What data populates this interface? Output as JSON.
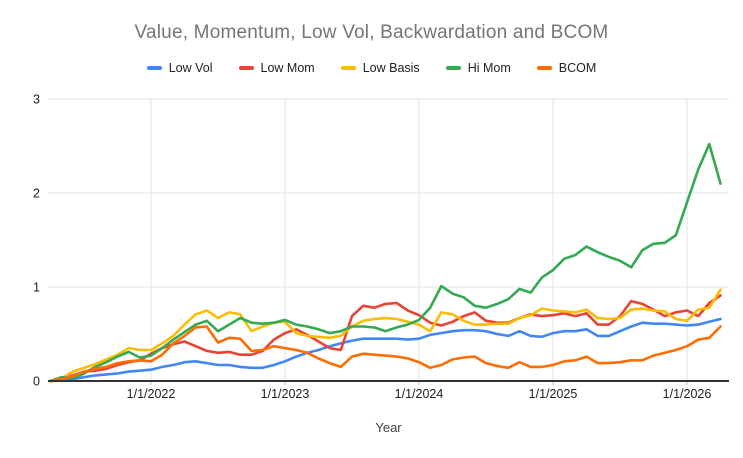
{
  "chart_data": {
    "type": "line",
    "title": "Value, Momentum, Low Vol, Backwardation and BCOM",
    "xlabel": "Year",
    "legend_position": "top",
    "grid": true,
    "ylim": [
      0,
      3
    ],
    "y_ticks": [
      0,
      1,
      2,
      3
    ],
    "x_ticks": [
      {
        "label": "1/1/2022",
        "t": 2022
      },
      {
        "label": "1/1/2023",
        "t": 2023
      },
      {
        "label": "1/1/2024",
        "t": 2024
      },
      {
        "label": "1/1/2025",
        "t": 2025
      },
      {
        "label": "1/1/2026",
        "t": 2026
      }
    ],
    "x_start_label": "4/2021",
    "x_labels": [
      "4/2021",
      "5/2021",
      "6/2021",
      "7/2021",
      "8/2021",
      "9/2021",
      "10/2021",
      "11/2021",
      "12/2021",
      "1/2022",
      "2/2022",
      "3/2022",
      "4/2022",
      "5/2022",
      "6/2022",
      "7/2022",
      "8/2022",
      "9/2022",
      "10/2022",
      "11/2022",
      "12/2022",
      "1/2023",
      "2/2023",
      "3/2023",
      "4/2023",
      "5/2023",
      "6/2023",
      "7/2023",
      "8/2023",
      "9/2023",
      "10/2023",
      "11/2023",
      "12/2023",
      "1/2024",
      "2/2024",
      "3/2024",
      "4/2024",
      "5/2024",
      "6/2024",
      "7/2024",
      "8/2024",
      "9/2024",
      "10/2024",
      "11/2024",
      "12/2024",
      "1/2025",
      "2/2025",
      "3/2025",
      "4/2025",
      "5/2025",
      "6/2025",
      "7/2025",
      "8/2025",
      "9/2025",
      "10/2025",
      "11/2025",
      "12/2025",
      "1/2026",
      "2/2026",
      "3/2026",
      "4/2026"
    ],
    "series": [
      {
        "name": "Low Vol",
        "color": "#4285f4",
        "values": [
          0.0,
          0.01,
          0.02,
          0.04,
          0.06,
          0.07,
          0.08,
          0.1,
          0.11,
          0.12,
          0.15,
          0.17,
          0.2,
          0.21,
          0.19,
          0.17,
          0.17,
          0.15,
          0.14,
          0.14,
          0.17,
          0.21,
          0.26,
          0.3,
          0.33,
          0.37,
          0.4,
          0.43,
          0.45,
          0.45,
          0.45,
          0.45,
          0.44,
          0.45,
          0.49,
          0.51,
          0.53,
          0.54,
          0.54,
          0.53,
          0.5,
          0.48,
          0.53,
          0.48,
          0.47,
          0.51,
          0.53,
          0.53,
          0.55,
          0.48,
          0.48,
          0.53,
          0.58,
          0.62,
          0.61,
          0.61,
          0.6,
          0.59,
          0.6,
          0.63,
          0.66
        ]
      },
      {
        "name": "Low Mom",
        "color": "#ea4335",
        "values": [
          0.0,
          0.02,
          0.06,
          0.1,
          0.11,
          0.13,
          0.17,
          0.2,
          0.22,
          0.29,
          0.35,
          0.39,
          0.42,
          0.37,
          0.32,
          0.3,
          0.31,
          0.28,
          0.28,
          0.32,
          0.44,
          0.51,
          0.55,
          0.49,
          0.42,
          0.35,
          0.33,
          0.69,
          0.8,
          0.78,
          0.82,
          0.83,
          0.75,
          0.7,
          0.62,
          0.59,
          0.63,
          0.69,
          0.73,
          0.64,
          0.62,
          0.62,
          0.67,
          0.71,
          0.69,
          0.7,
          0.72,
          0.69,
          0.72,
          0.6,
          0.6,
          0.69,
          0.85,
          0.82,
          0.76,
          0.69,
          0.73,
          0.75,
          0.69,
          0.83,
          0.91
        ]
      },
      {
        "name": "Low Basis",
        "color": "#fbbc04",
        "values": [
          0.0,
          0.03,
          0.1,
          0.14,
          0.18,
          0.23,
          0.28,
          0.35,
          0.33,
          0.33,
          0.4,
          0.48,
          0.6,
          0.71,
          0.75,
          0.67,
          0.73,
          0.71,
          0.53,
          0.58,
          0.62,
          0.63,
          0.51,
          0.48,
          0.47,
          0.46,
          0.48,
          0.58,
          0.64,
          0.66,
          0.67,
          0.66,
          0.63,
          0.6,
          0.53,
          0.73,
          0.71,
          0.64,
          0.6,
          0.6,
          0.61,
          0.61,
          0.67,
          0.7,
          0.77,
          0.75,
          0.74,
          0.73,
          0.76,
          0.67,
          0.66,
          0.67,
          0.76,
          0.77,
          0.75,
          0.74,
          0.66,
          0.64,
          0.76,
          0.78,
          0.97
        ]
      },
      {
        "name": "Hi Mom",
        "color": "#34a853",
        "values": [
          0.0,
          0.04,
          0.03,
          0.08,
          0.15,
          0.2,
          0.26,
          0.31,
          0.25,
          0.27,
          0.35,
          0.44,
          0.52,
          0.6,
          0.64,
          0.53,
          0.6,
          0.67,
          0.62,
          0.61,
          0.62,
          0.65,
          0.6,
          0.58,
          0.55,
          0.51,
          0.53,
          0.58,
          0.58,
          0.57,
          0.53,
          0.57,
          0.6,
          0.65,
          0.78,
          1.01,
          0.93,
          0.89,
          0.8,
          0.78,
          0.82,
          0.87,
          0.98,
          0.94,
          1.1,
          1.18,
          1.3,
          1.34,
          1.43,
          1.37,
          1.32,
          1.28,
          1.21,
          1.39,
          1.46,
          1.47,
          1.55,
          1.9,
          2.25,
          2.52,
          2.1
        ]
      },
      {
        "name": "BCOM",
        "color": "#ff6d01",
        "values": [
          0.0,
          0.02,
          0.05,
          0.1,
          0.13,
          0.15,
          0.19,
          0.21,
          0.22,
          0.21,
          0.28,
          0.4,
          0.48,
          0.57,
          0.58,
          0.41,
          0.46,
          0.45,
          0.32,
          0.33,
          0.37,
          0.35,
          0.33,
          0.3,
          0.24,
          0.19,
          0.15,
          0.26,
          0.29,
          0.28,
          0.27,
          0.26,
          0.24,
          0.2,
          0.14,
          0.17,
          0.23,
          0.25,
          0.26,
          0.19,
          0.16,
          0.14,
          0.2,
          0.15,
          0.15,
          0.17,
          0.21,
          0.22,
          0.26,
          0.19,
          0.19,
          0.2,
          0.22,
          0.22,
          0.27,
          0.3,
          0.33,
          0.37,
          0.44,
          0.46,
          0.58
        ]
      }
    ],
    "style": {
      "title_color": "#757575",
      "tick_label_color": "#212121",
      "gridline_color": "#e3e3e3",
      "baseline_color": "#333333",
      "background": "#ffffff"
    }
  }
}
